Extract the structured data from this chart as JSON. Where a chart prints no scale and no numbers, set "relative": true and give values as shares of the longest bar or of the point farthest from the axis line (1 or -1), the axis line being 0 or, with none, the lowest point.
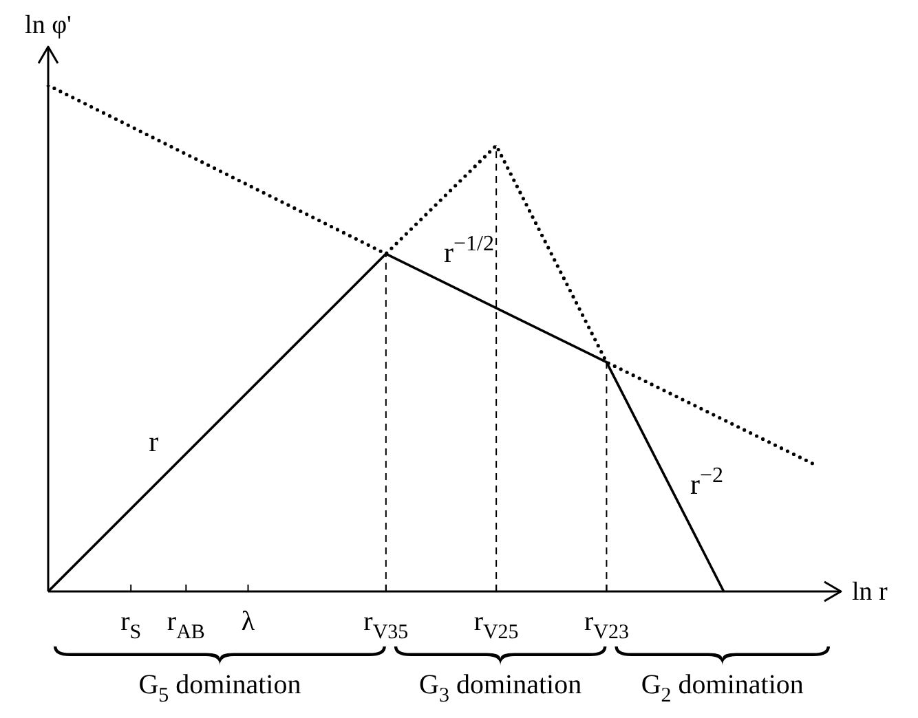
{
  "chart_data": {
    "type": "line",
    "relative": true,
    "marker": "none",
    "xlabel": "ln r",
    "ylabel": "ln φ'",
    "categories": [
      null,
      null,
      null,
      null,
      null,
      null,
      null,
      null,
      null,
      null,
      null,
      null,
      "r$_{S}$",
      null,
      null,
      null,
      null,
      null,
      null,
      null,
      "r$_{AB}$",
      null,
      null,
      null,
      null,
      null,
      null,
      null,
      null,
      "λ",
      null,
      null,
      null,
      null,
      null,
      null,
      null,
      null,
      null,
      null,
      null,
      null,
      null,
      null,
      null,
      null,
      null,
      null,
      null,
      "r$_{V35}$",
      null,
      null,
      null,
      null,
      null,
      null,
      null,
      null,
      null,
      null,
      null,
      null,
      null,
      null,
      null,
      "r$_{V25}$",
      null,
      null,
      null,
      null,
      null,
      null,
      null,
      null,
      null,
      null,
      null,
      null,
      null,
      null,
      null,
      "r$_{V23}$",
      null,
      null,
      null,
      null,
      null,
      null,
      null,
      null,
      null,
      null,
      null,
      null,
      null,
      null,
      null,
      null,
      null,
      null,
      null,
      null,
      null,
      null,
      null,
      null,
      null,
      null,
      null,
      null,
      null,
      null,
      null,
      null,
      null,
      null
    ],
    "series": [
      {
        "color": "#000000",
        "line_style": "solid",
        "values": [
          0,
          null,
          null,
          null,
          null,
          null,
          null,
          null,
          null,
          null,
          null,
          null,
          null,
          null,
          null,
          null,
          null,
          null,
          null,
          null,
          null,
          null,
          null,
          null,
          null,
          null,
          null,
          null,
          null,
          null,
          null,
          null,
          null,
          null,
          null,
          null,
          null,
          null,
          null,
          null,
          null,
          null,
          null,
          null,
          null,
          null,
          null,
          null,
          null,
          0.667,
          null,
          null,
          null,
          null,
          null,
          null,
          null,
          null,
          null,
          null,
          null,
          null,
          null,
          null,
          null,
          null,
          null,
          null,
          null,
          null,
          null,
          null,
          null,
          null,
          null,
          null,
          null,
          null,
          null,
          null,
          null,
          0.453,
          null,
          null,
          null,
          null,
          null,
          null,
          null,
          null,
          null,
          null,
          null,
          null,
          null,
          null,
          null,
          null,
          0,
          null,
          null,
          null,
          null,
          null,
          null,
          null,
          null,
          null,
          null,
          null,
          null,
          null,
          null,
          null,
          null,
          null
        ]
      },
      {
        "color": "#000000",
        "line_style": "dotted",
        "values": [
          1,
          null,
          null,
          null,
          null,
          null,
          null,
          null,
          null,
          null,
          null,
          null,
          null,
          null,
          null,
          null,
          null,
          null,
          null,
          null,
          null,
          null,
          null,
          null,
          null,
          null,
          null,
          null,
          null,
          null,
          null,
          null,
          null,
          null,
          null,
          null,
          null,
          null,
          null,
          null,
          null,
          null,
          null,
          null,
          null,
          null,
          null,
          null,
          null,
          0.667,
          null,
          null,
          null,
          null,
          null,
          null,
          null,
          null,
          null,
          null,
          null,
          null,
          null,
          null,
          null,
          0.881,
          null,
          null,
          null,
          null,
          null,
          null,
          null,
          null,
          null,
          null,
          null,
          null,
          null,
          null,
          null,
          0.453,
          null,
          null,
          null,
          null,
          null,
          null,
          null,
          null,
          null,
          null,
          null,
          null,
          null,
          null,
          null,
          null,
          null,
          null,
          null,
          null,
          null,
          null,
          null,
          null,
          null,
          null,
          null,
          null,
          null,
          0.252,
          null,
          null,
          null,
          null
        ]
      }
    ],
    "ref_lines": [
      {
        "axis": "x",
        "value": "r$_{V35}$",
        "color": "#000000",
        "line_style": "dashed"
      },
      {
        "axis": "x",
        "value": "r$_{V25}$",
        "color": "#000000",
        "line_style": "dashed"
      },
      {
        "axis": "x",
        "value": "r$_{V23}$",
        "color": "#000000",
        "line_style": "dashed"
      }
    ],
    "annotations": [
      "r",
      "r$^{−1/2}$",
      "r$^{−2}$",
      "G$_{5}$ domination",
      "G$_{3}$ domination",
      "G$_{2}$ domination"
    ]
  }
}
